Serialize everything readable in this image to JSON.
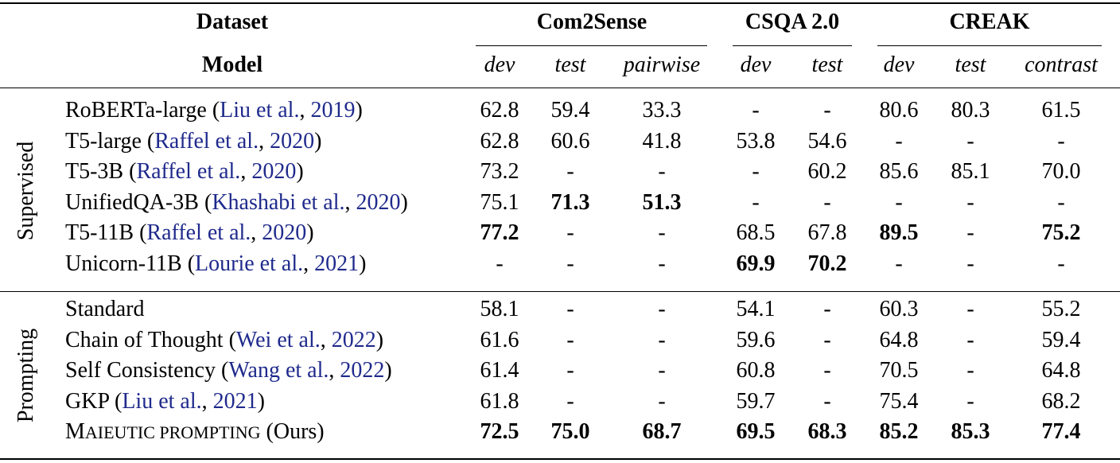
{
  "headers": {
    "dataset_label": "Dataset",
    "model_label": "Model",
    "groups": [
      {
        "label": "Com2Sense",
        "subs": [
          "dev",
          "test",
          "pairwise"
        ]
      },
      {
        "label": "CSQA 2.0",
        "subs": [
          "dev",
          "test"
        ]
      },
      {
        "label": "CREAK",
        "subs": [
          "dev",
          "test",
          "contrast"
        ]
      }
    ]
  },
  "sections": [
    {
      "label": "Supervised",
      "rows": [
        {
          "name": "RoBERTa-large",
          "cite_pre": " (",
          "cite_author": "Liu et al.",
          "cite_sep": ", ",
          "cite_year": "2019",
          "cite_post": ")",
          "values": [
            "62.8",
            "59.4",
            "33.3",
            "-",
            "-",
            "80.6",
            "80.3",
            "61.5"
          ],
          "bold": []
        },
        {
          "name": "T5-large",
          "cite_pre": " (",
          "cite_author": "Raffel et al.",
          "cite_sep": ", ",
          "cite_year": "2020",
          "cite_post": ")",
          "values": [
            "62.8",
            "60.6",
            "41.8",
            "53.8",
            "54.6",
            "-",
            "-",
            "-"
          ],
          "bold": []
        },
        {
          "name": "T5-3B",
          "cite_pre": " (",
          "cite_author": "Raffel et al.",
          "cite_sep": ", ",
          "cite_year": "2020",
          "cite_post": ")",
          "values": [
            "73.2",
            "-",
            "-",
            "-",
            "60.2",
            "85.6",
            "85.1",
            "70.0"
          ],
          "bold": []
        },
        {
          "name": "UnifiedQA-3B",
          "cite_pre": " (",
          "cite_author": "Khashabi et al.",
          "cite_sep": ", ",
          "cite_year": "2020",
          "cite_post": ")",
          "values": [
            "75.1",
            "71.3",
            "51.3",
            "-",
            "-",
            "-",
            "-",
            "-"
          ],
          "bold": [
            1,
            2
          ]
        },
        {
          "name": "T5-11B",
          "cite_pre": " (",
          "cite_author": "Raffel et al.",
          "cite_sep": ", ",
          "cite_year": "2020",
          "cite_post": ")",
          "values": [
            "77.2",
            "-",
            "-",
            "68.5",
            "67.8",
            "89.5",
            "-",
            "75.2"
          ],
          "bold": [
            0,
            5,
            7
          ]
        },
        {
          "name": "Unicorn-11B",
          "cite_pre": " (",
          "cite_author": "Lourie et al.",
          "cite_sep": ", ",
          "cite_year": "2021",
          "cite_post": ")",
          "values": [
            "-",
            "-",
            "-",
            "69.9",
            "70.2",
            "-",
            "-",
            "-"
          ],
          "bold": [
            3,
            4
          ]
        }
      ]
    },
    {
      "label": "Prompting",
      "rows": [
        {
          "name": "Standard",
          "cite_pre": "",
          "cite_author": "",
          "cite_sep": "",
          "cite_year": "",
          "cite_post": "",
          "values": [
            "58.1",
            "-",
            "-",
            "54.1",
            "-",
            "60.3",
            "-",
            "55.2"
          ],
          "bold": []
        },
        {
          "name": "Chain of Thought",
          "cite_pre": " (",
          "cite_author": "Wei et al.",
          "cite_sep": ", ",
          "cite_year": "2022",
          "cite_post": ")",
          "values": [
            "61.6",
            "-",
            "-",
            "59.6",
            "-",
            "64.8",
            "-",
            "59.4"
          ],
          "bold": []
        },
        {
          "name": "Self Consistency",
          "cite_pre": " (",
          "cite_author": "Wang et al.",
          "cite_sep": ", ",
          "cite_year": "2022",
          "cite_post": ")",
          "values": [
            "61.4",
            "-",
            "-",
            "60.8",
            "-",
            "70.5",
            "-",
            "64.8"
          ],
          "bold": []
        },
        {
          "name": "GKP",
          "cite_pre": " (",
          "cite_author": "Liu et al.",
          "cite_sep": ", ",
          "cite_year": "2021",
          "cite_post": ")",
          "values": [
            "61.8",
            "-",
            "-",
            "59.7",
            "-",
            "75.4",
            "-",
            "68.2"
          ],
          "bold": []
        },
        {
          "name_sc": [
            [
              "M",
              "big"
            ],
            [
              "AIEUTIC PROMPTING",
              "small"
            ]
          ],
          "name_suffix": " (Ours)",
          "values": [
            "72.5",
            "75.0",
            "68.7",
            "69.5",
            "68.3",
            "85.2",
            "85.3",
            "77.4"
          ],
          "bold": [
            0,
            1,
            2,
            3,
            4,
            5,
            6,
            7
          ],
          "ours": true
        }
      ]
    }
  ]
}
